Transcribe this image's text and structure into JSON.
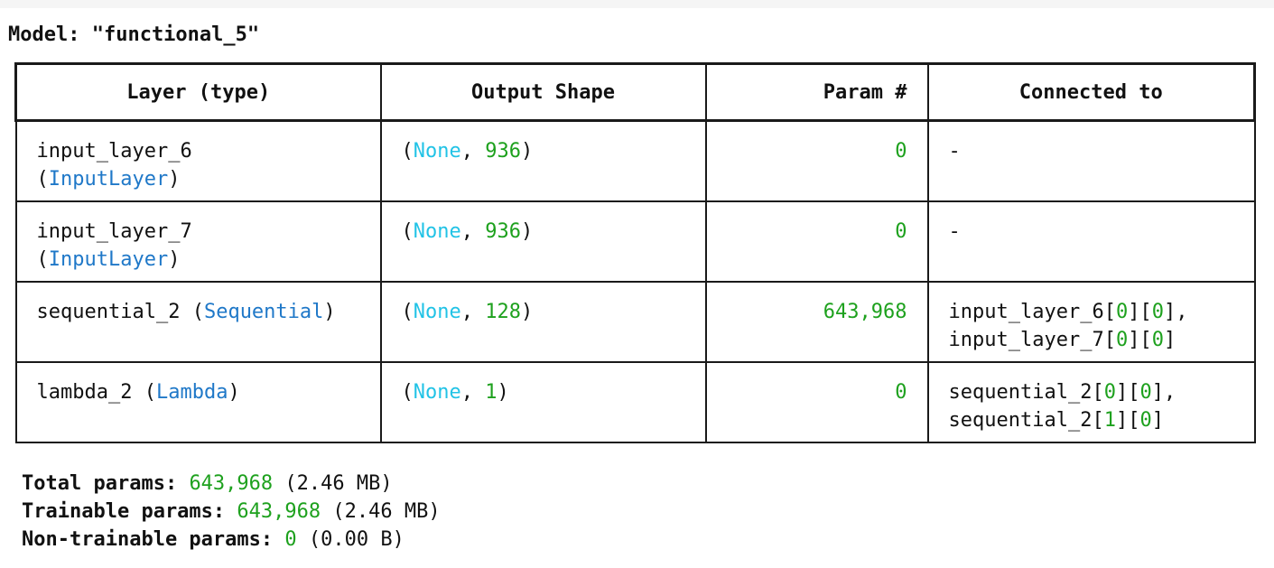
{
  "model_title": "Model: \"functional_5\"",
  "table": {
    "headers": {
      "layer": "Layer (type)",
      "shape": "Output Shape",
      "param": "Param #",
      "connected": "Connected to"
    },
    "rows": [
      {
        "layer_name": "input_layer_6",
        "layer_type": "InputLayer",
        "shape_first": "None",
        "shape_second": "936",
        "params": "0",
        "connected": [],
        "connected_empty": "-"
      },
      {
        "layer_name": "input_layer_7",
        "layer_type": "InputLayer",
        "shape_first": "None",
        "shape_second": "936",
        "params": "0",
        "connected": [],
        "connected_empty": "-"
      },
      {
        "layer_name": "sequential_2",
        "layer_type": "Sequential",
        "shape_first": "None",
        "shape_second": "128",
        "params": "643,968",
        "connected": [
          {
            "name": "input_layer_6",
            "i": "0",
            "j": "0",
            "trail": ","
          },
          {
            "name": "input_layer_7",
            "i": "0",
            "j": "0",
            "trail": ""
          }
        ]
      },
      {
        "layer_name": "lambda_2",
        "layer_type": "Lambda",
        "shape_first": "None",
        "shape_second": "1",
        "params": "0",
        "connected": [
          {
            "name": "sequential_2",
            "i": "0",
            "j": "0",
            "trail": ","
          },
          {
            "name": "sequential_2",
            "i": "1",
            "j": "0",
            "trail": ""
          }
        ]
      }
    ]
  },
  "totals": {
    "total_label": "Total params:",
    "total_value": "643,968",
    "total_size": "(2.46 MB)",
    "trainable_label": "Trainable params:",
    "trainable_value": "643,968",
    "trainable_size": "(2.46 MB)",
    "nontrainable_label": "Non-trainable params:",
    "nontrainable_value": "0",
    "nontrainable_size": "(0.00 B)"
  },
  "colors": {
    "none_keyword": "#22c3e6",
    "number": "#1ea11e",
    "layer_type": "#1f78c8"
  }
}
